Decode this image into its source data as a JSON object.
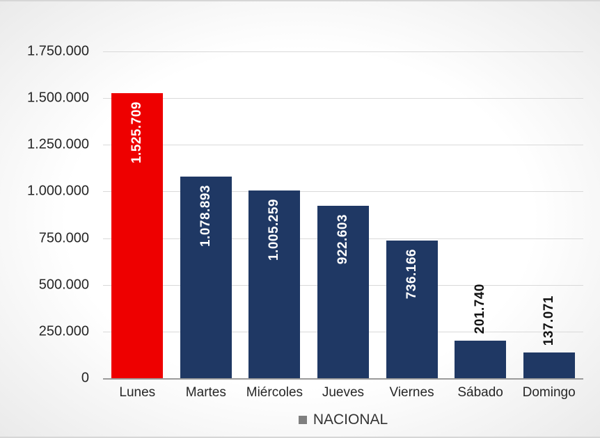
{
  "chart_data": {
    "type": "bar",
    "title": "",
    "xlabel": "",
    "ylabel": "",
    "categories": [
      "Lunes",
      "Martes",
      "Miércoles",
      "Jueves",
      "Viernes",
      "Sábado",
      "Domingo"
    ],
    "values": [
      1525709,
      1078893,
      1005259,
      922603,
      736166,
      201740,
      137071
    ],
    "value_labels": [
      "1.525.709",
      "1.078.893",
      "1.005.259",
      "922.603",
      "736.166",
      "201.740",
      "137.071"
    ],
    "bar_colors": [
      "#ee0000",
      "#1f3864",
      "#1f3864",
      "#1f3864",
      "#1f3864",
      "#1f3864",
      "#1f3864"
    ],
    "ylim": [
      0,
      1750000
    ],
    "yticks": [
      0,
      250000,
      500000,
      750000,
      1000000,
      1250000,
      1500000,
      1750000
    ],
    "ytick_labels": [
      "0",
      "250.000",
      "500.000",
      "750.000",
      "1.000.000",
      "1.250.000",
      "1.500.000",
      "1.750.000"
    ],
    "grid": true,
    "legend": {
      "position": "bottom",
      "entries": [
        {
          "label": "NACIONAL",
          "color": "#7f7f7f"
        }
      ]
    }
  }
}
